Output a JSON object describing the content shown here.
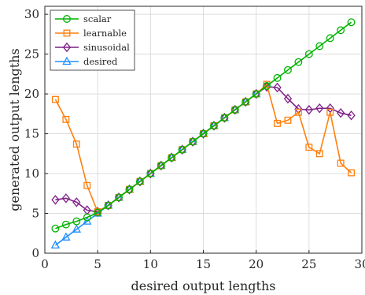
{
  "chart_data": {
    "type": "line",
    "xlabel": "desired output lengths",
    "ylabel": "generated output lengths",
    "xlim": [
      0,
      30
    ],
    "ylim": [
      0,
      31
    ],
    "xticks": [
      0,
      5,
      10,
      15,
      20,
      25,
      30
    ],
    "yticks": [
      0,
      5,
      10,
      15,
      20,
      25,
      30
    ],
    "grid": true,
    "legend_position": "top-left",
    "series": [
      {
        "name": "scalar",
        "color": "#00b300",
        "marker": "circle",
        "x": [
          1,
          2,
          3,
          4,
          5,
          6,
          7,
          8,
          9,
          10,
          11,
          12,
          13,
          14,
          15,
          16,
          17,
          18,
          19,
          20,
          21,
          22,
          23,
          24,
          25,
          26,
          27,
          28,
          29
        ],
        "y": [
          3.1,
          3.6,
          4.0,
          4.5,
          5.1,
          6,
          7,
          8,
          9,
          10,
          11,
          12,
          13,
          14,
          15,
          16,
          17,
          18,
          19,
          20,
          21,
          22,
          23,
          24,
          25,
          26,
          27,
          28,
          29
        ]
      },
      {
        "name": "learnable",
        "color": "#ff7f0e",
        "marker": "square",
        "x": [
          1,
          2,
          3,
          4,
          5,
          6,
          7,
          8,
          9,
          10,
          11,
          12,
          13,
          14,
          15,
          16,
          17,
          18,
          19,
          20,
          21,
          22,
          23,
          24,
          25,
          26,
          27,
          28,
          29
        ],
        "y": [
          19.3,
          16.8,
          13.7,
          8.5,
          5.2,
          6,
          7,
          8,
          9,
          10,
          11,
          12,
          13,
          14,
          15,
          16,
          17,
          18,
          19,
          20,
          21.2,
          16.3,
          16.7,
          17.7,
          13.3,
          12.5,
          17.7,
          11.3,
          10.1
        ]
      },
      {
        "name": "sinusoidal",
        "color": "#7e1f86",
        "marker": "diamond",
        "x": [
          1,
          2,
          3,
          4,
          5,
          6,
          7,
          8,
          9,
          10,
          11,
          12,
          13,
          14,
          15,
          16,
          17,
          18,
          19,
          20,
          21,
          22,
          23,
          24,
          25,
          26,
          27,
          28,
          29
        ],
        "y": [
          6.7,
          6.9,
          6.4,
          5.4,
          5.2,
          6,
          7,
          8,
          9,
          10,
          11,
          12,
          13,
          14,
          15,
          16,
          17,
          18,
          19,
          20,
          20.9,
          20.8,
          19.4,
          18.1,
          18.0,
          18.2,
          18.2,
          17.6,
          17.3
        ]
      },
      {
        "name": "desired",
        "color": "#1e90ff",
        "marker": "triangle",
        "x": [
          1,
          2,
          3,
          4,
          5,
          6,
          7,
          8,
          9,
          10,
          11,
          12,
          13,
          14,
          15,
          16,
          17,
          18,
          19,
          20
        ],
        "y": [
          1,
          2,
          3,
          4,
          5,
          6,
          7,
          8,
          9,
          10,
          11,
          12,
          13,
          14,
          15,
          16,
          17,
          18,
          19,
          20
        ]
      }
    ]
  }
}
